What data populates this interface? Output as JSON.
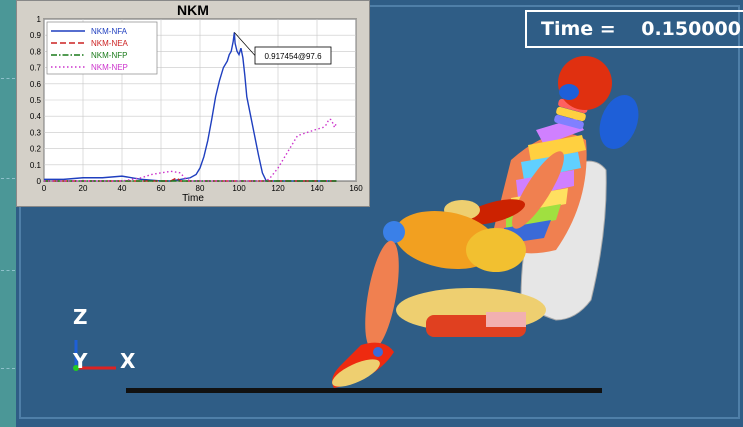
{
  "viewer": {
    "time_label": "Time =",
    "time_value": "0.150000",
    "triad": {
      "z": "Z",
      "y": "Y",
      "x": "X"
    }
  },
  "chart_data": {
    "type": "line",
    "title": "NKM",
    "xlabel": "Time",
    "ylabel": "",
    "xlim": [
      0,
      160
    ],
    "ylim": [
      0,
      1
    ],
    "xticks": [
      0,
      20,
      40,
      60,
      80,
      100,
      120,
      140,
      160
    ],
    "yticks": [
      0,
      0.1,
      0.2,
      0.3,
      0.4,
      0.5,
      0.6,
      0.7,
      0.8,
      0.9,
      1
    ],
    "grid": true,
    "legend_position": "top-left",
    "annotation": {
      "text": "0.917454@97.6",
      "x": 97.6,
      "y": 0.917454
    },
    "series": [
      {
        "name": "NKM-NFA",
        "color": "#1f3fbf",
        "style": "solid",
        "x": [
          0,
          10,
          20,
          30,
          40,
          50,
          60,
          65,
          70,
          75,
          78,
          80,
          82,
          84,
          86,
          88,
          90,
          92,
          94,
          95,
          96,
          97,
          97.6,
          98,
          99,
          100,
          101,
          102,
          103,
          104,
          106,
          108,
          110,
          112,
          114,
          116,
          120,
          130,
          140,
          150
        ],
        "y": [
          0.01,
          0.01,
          0.02,
          0.02,
          0.03,
          0.01,
          0.0,
          0.0,
          0.01,
          0.02,
          0.04,
          0.08,
          0.15,
          0.25,
          0.38,
          0.52,
          0.62,
          0.7,
          0.74,
          0.78,
          0.8,
          0.86,
          0.917,
          0.85,
          0.8,
          0.78,
          0.82,
          0.76,
          0.65,
          0.52,
          0.4,
          0.28,
          0.16,
          0.05,
          0.0,
          0.0,
          0.0,
          0.0,
          0.0,
          0.0
        ]
      },
      {
        "name": "NKM-NEA",
        "color": "#cc2222",
        "style": "dash",
        "x": [
          0,
          20,
          40,
          60,
          65,
          68,
          70,
          75,
          100,
          120,
          140,
          150
        ],
        "y": [
          0.0,
          0.0,
          0.0,
          0.0,
          0.0,
          0.02,
          0.0,
          0.0,
          0.0,
          0.0,
          0.0,
          0.0
        ]
      },
      {
        "name": "NKM-NFP",
        "color": "#1a7a1a",
        "style": "dashdot",
        "x": [
          0,
          40,
          80,
          120,
          150
        ],
        "y": [
          0.0,
          0.0,
          0.0,
          0.0,
          0.0
        ]
      },
      {
        "name": "NKM-NEP",
        "color": "#cc33cc",
        "style": "dot",
        "x": [
          0,
          40,
          50,
          55,
          60,
          65,
          70,
          72,
          75,
          80,
          110,
          114,
          116,
          118,
          120,
          122,
          125,
          128,
          130,
          135,
          140,
          143,
          145,
          146,
          147,
          148,
          149,
          150
        ],
        "y": [
          0.0,
          0.0,
          0.02,
          0.04,
          0.05,
          0.06,
          0.05,
          0.02,
          0.0,
          0.0,
          0.0,
          0.0,
          0.02,
          0.05,
          0.08,
          0.12,
          0.18,
          0.24,
          0.28,
          0.3,
          0.32,
          0.33,
          0.35,
          0.38,
          0.38,
          0.36,
          0.33,
          0.36
        ]
      }
    ]
  },
  "colors": {
    "viewport_bg": "#2f5d86",
    "seat": "#e6e6e6",
    "ground": "#111111"
  }
}
